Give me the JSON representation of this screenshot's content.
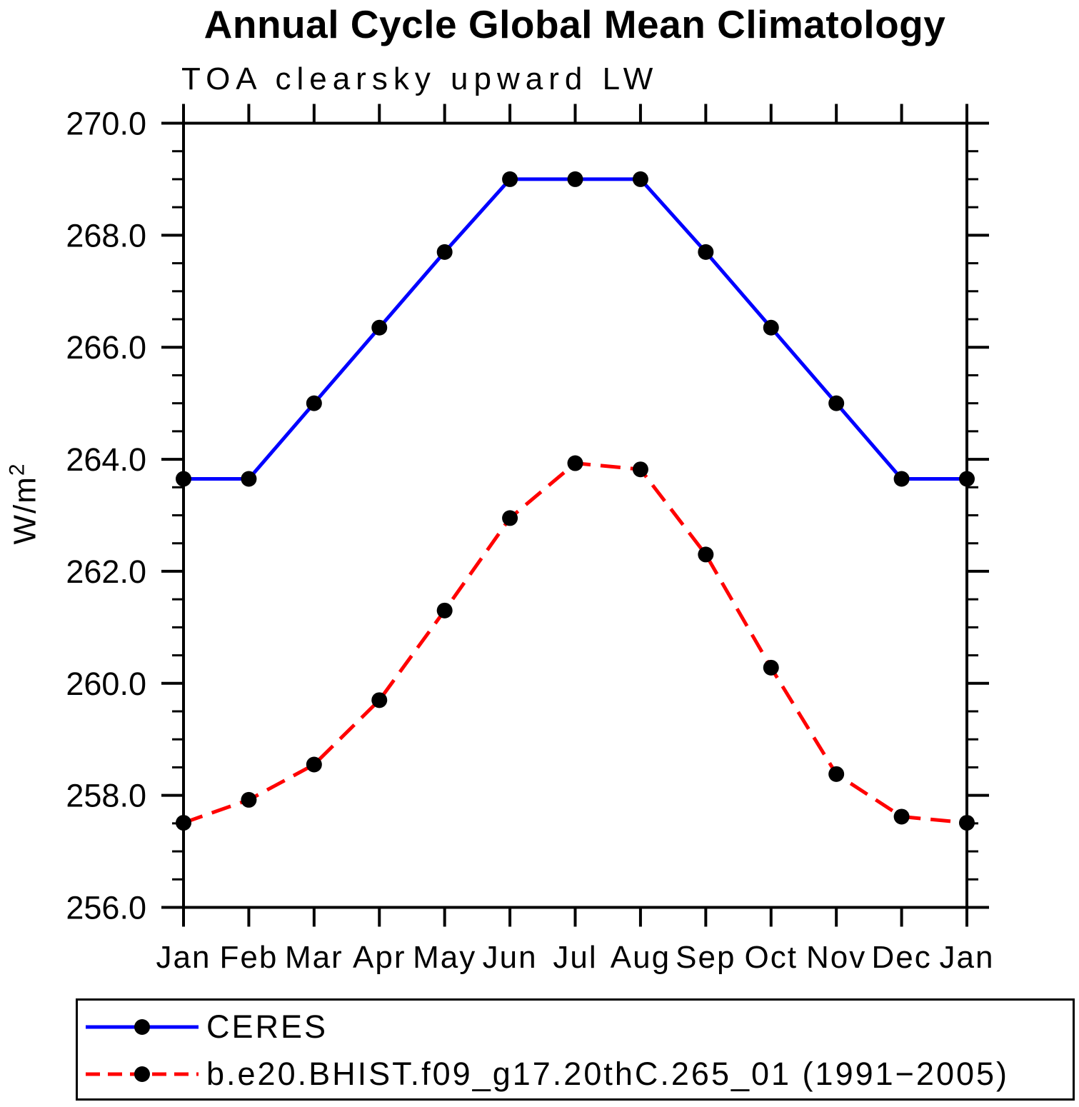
{
  "title": "Annual Cycle Global Mean Climatology",
  "subtitle": "TOA clearsky upward LW",
  "ylabel": {
    "base": "W/m",
    "exponent": "2"
  },
  "chart_data": {
    "type": "line",
    "categories": [
      "Jan",
      "Feb",
      "Mar",
      "Apr",
      "May",
      "Jun",
      "Jul",
      "Aug",
      "Sep",
      "Oct",
      "Nov",
      "Dec",
      "Jan"
    ],
    "series": [
      {
        "name": "CERES",
        "color": "#0000ff",
        "style": "solid",
        "values": [
          263.65,
          263.65,
          265.0,
          266.35,
          267.7,
          269.0,
          269.0,
          269.0,
          267.7,
          266.35,
          265.0,
          263.65,
          263.65
        ]
      },
      {
        "name": "b.e20.BHIST.f09_g17.20thC.265_01 (1991−2005)",
        "color": "#ff0000",
        "style": "dashed",
        "values": [
          257.51,
          257.92,
          258.55,
          259.7,
          261.3,
          262.95,
          263.93,
          263.82,
          262.3,
          260.28,
          258.38,
          257.62,
          257.51
        ]
      }
    ],
    "title": "Annual Cycle Global Mean Climatology",
    "subtitle": "TOA clearsky upward LW",
    "xlabel": "",
    "ylabel": "W/m2",
    "ylim": [
      256.0,
      270.0
    ],
    "ytick_step": 2.0,
    "ytick_minor_step": 0.5,
    "yticks": [
      "256.0",
      "258.0",
      "260.0",
      "262.0",
      "264.0",
      "266.0",
      "268.0",
      "270.0"
    ],
    "marker_color": "#000000",
    "grid": false,
    "legend_position": "bottom"
  }
}
